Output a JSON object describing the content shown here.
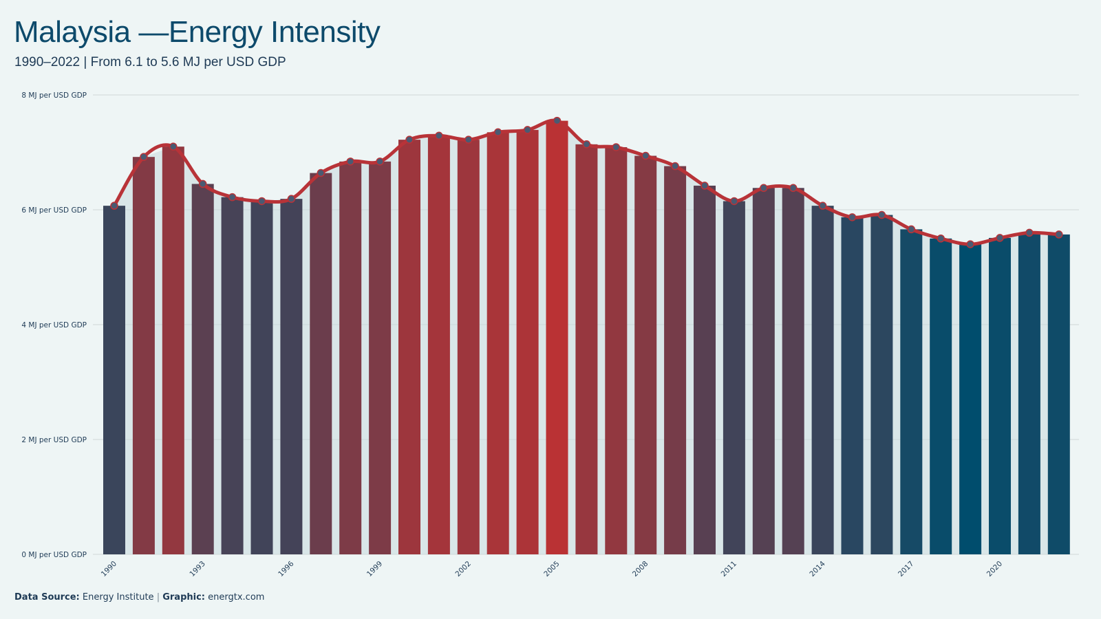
{
  "title": "Malaysia —Energy Intensity",
  "subtitle": "1990–2022 | From 6.1 to 5.6 MJ per USD GDP",
  "footer": {
    "source_label": "Data Source:",
    "source_value": "Energy Institute",
    "separator": "|",
    "graphic_label": "Graphic:",
    "graphic_value": "energtx.com"
  },
  "colors": {
    "background": "#eef5f5",
    "line": "#b83338",
    "marker": "#4a5a72",
    "low": "#004d6d",
    "high": "#ba3234",
    "grid": "#d6dede"
  },
  "chart_data": {
    "type": "bar",
    "overlay": "line",
    "title": "Malaysia —Energy Intensity",
    "subtitle": "1990–2022 | From 6.1 to 5.6 MJ per USD GDP",
    "xlabel": "",
    "ylabel": "",
    "y_unit": "MJ per USD GDP",
    "ylim": [
      0,
      8
    ],
    "yticks": [
      0,
      2,
      4,
      6,
      8
    ],
    "ytick_labels": [
      "0 MJ per USD GDP",
      "2 MJ per USD GDP",
      "4 MJ per USD GDP",
      "6 MJ per USD GDP",
      "8 MJ per USD GDP"
    ],
    "grid": true,
    "x_tick_labels": [
      "1990",
      "1993",
      "1996",
      "1999",
      "2002",
      "2005",
      "2008",
      "2011",
      "2014",
      "2017",
      "2020"
    ],
    "categories": [
      1990,
      1991,
      1992,
      1993,
      1994,
      1995,
      1996,
      1997,
      1998,
      1999,
      2000,
      2001,
      2002,
      2003,
      2004,
      2005,
      2006,
      2007,
      2008,
      2009,
      2010,
      2011,
      2012,
      2013,
      2014,
      2015,
      2016,
      2017,
      2018,
      2019,
      2020,
      2021,
      2022
    ],
    "values": [
      6.07,
      6.92,
      7.1,
      6.45,
      6.22,
      6.15,
      6.19,
      6.64,
      6.84,
      6.84,
      7.22,
      7.29,
      7.22,
      7.35,
      7.39,
      7.55,
      7.14,
      7.09,
      6.94,
      6.76,
      6.42,
      6.15,
      6.38,
      6.38,
      6.07,
      5.87,
      5.91,
      5.66,
      5.5,
      5.4,
      5.51,
      5.6,
      5.57
    ]
  }
}
